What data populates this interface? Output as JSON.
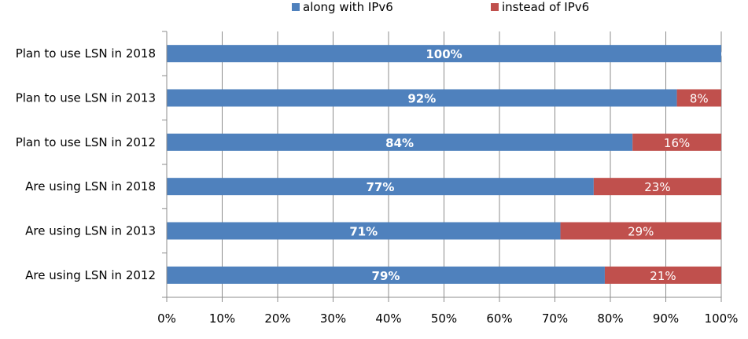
{
  "chart_data": {
    "type": "bar",
    "orientation": "horizontal",
    "stacked": true,
    "categories": [
      "Plan to use LSN in 2018",
      "Plan to use LSN in 2013",
      "Plan to use LSN in 2012",
      "Are using LSN in 2018",
      "Are using LSN in 2013",
      "Are using LSN in 2012"
    ],
    "series": [
      {
        "name": "along with IPv6",
        "color": "#4f81bd",
        "values": [
          100,
          92,
          84,
          77,
          71,
          79
        ],
        "labels": [
          "100%",
          "92%",
          "84%",
          "77%",
          "71%",
          "79%"
        ]
      },
      {
        "name": "instead of IPv6",
        "color": "#c0504d",
        "values": [
          0,
          8,
          16,
          23,
          29,
          21
        ],
        "labels": [
          "0%",
          "8%",
          "16%",
          "23%",
          "29%",
          "21%"
        ]
      }
    ],
    "x_ticks": [
      "0%",
      "10%",
      "20%",
      "30%",
      "40%",
      "50%",
      "60%",
      "70%",
      "80%",
      "90%",
      "100%"
    ],
    "xlim": [
      0,
      100
    ],
    "grid": true,
    "legend_position": "top"
  }
}
